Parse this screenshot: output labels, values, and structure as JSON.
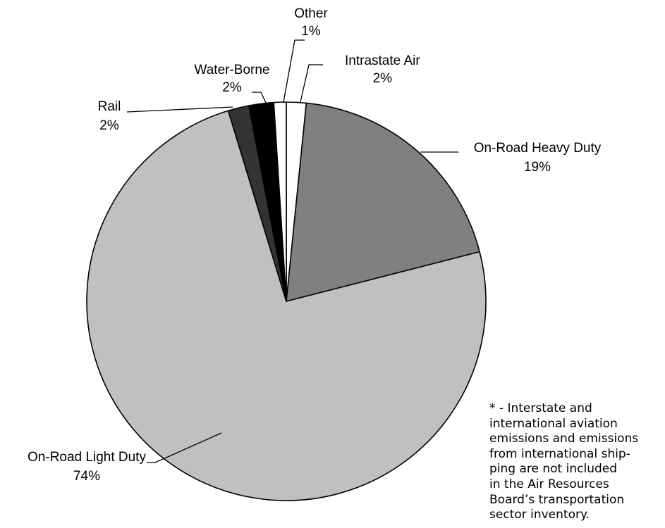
{
  "chart_data": {
    "type": "pie",
    "slices": [
      {
        "label": "Intrastate Air",
        "value": 1.6,
        "display": "2%",
        "color": "#ffffff"
      },
      {
        "label": "On-Road Heavy Duty",
        "value": 19.4,
        "display": "19%",
        "color": "#808080"
      },
      {
        "label": "On-Road Light Duty",
        "value": 74.3,
        "display": "74%",
        "color": "#c0c0c0"
      },
      {
        "label": "Rail",
        "value": 1.7,
        "display": "2%",
        "color": "#333333"
      },
      {
        "label": "Water-Borne",
        "value": 2.0,
        "display": "2%",
        "color": "#000000"
      },
      {
        "label": "Other",
        "value": 1.0,
        "display": "1%",
        "color": "#ffffff"
      }
    ],
    "stroke_color": "#000000"
  },
  "footnote_lines": [
    "* - Interstate and",
    "international aviation",
    "emissions and emissions",
    "from international ship-",
    "ping are not included",
    "in the Air Resources",
    "Board’s transportation",
    "sector inventory."
  ]
}
